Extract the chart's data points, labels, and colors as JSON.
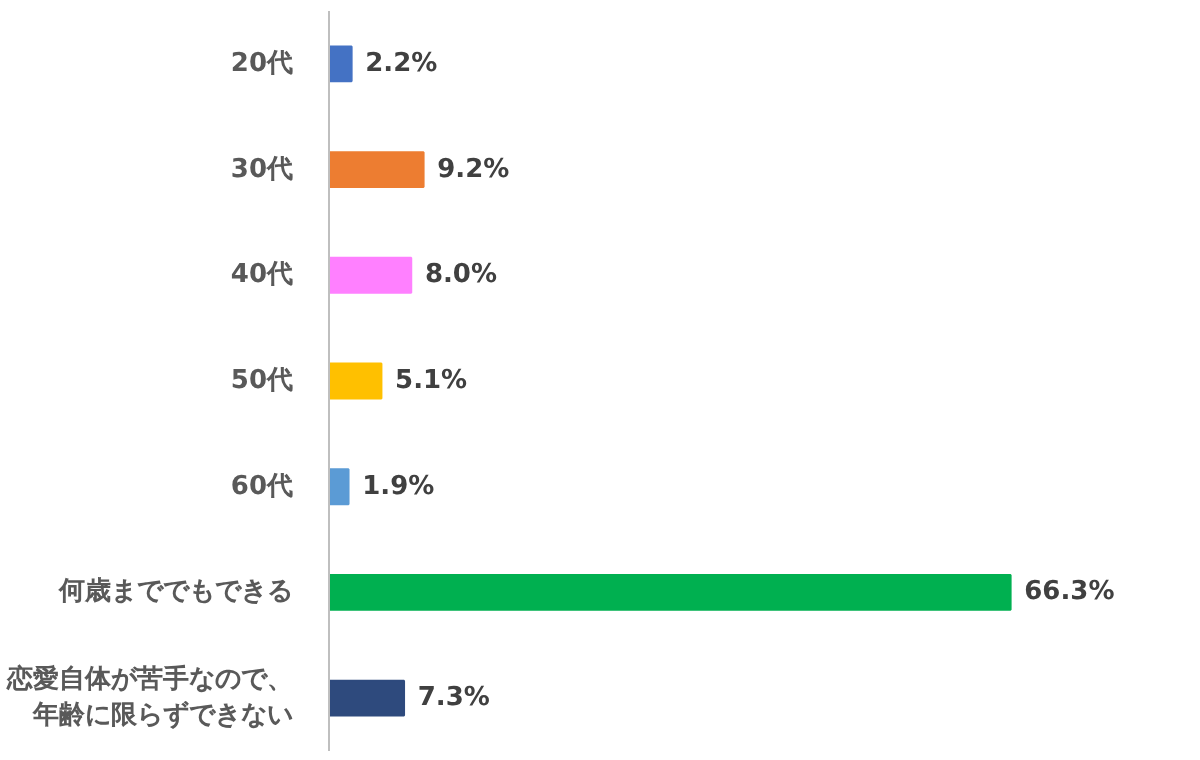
{
  "chart_data": {
    "type": "bar",
    "orientation": "horizontal",
    "categories": [
      "20代",
      "30代",
      "40代",
      "50代",
      "60代",
      "何歳まででもできる",
      "恋愛自体が苦手なので、年齢に限らずできない"
    ],
    "values": [
      2.2,
      9.2,
      8.0,
      5.1,
      1.9,
      66.3,
      7.3
    ],
    "value_labels": [
      "2.2%",
      "9.2%",
      "8.0%",
      "5.1%",
      "1.9%",
      "66.3%",
      "7.3%"
    ],
    "colors": [
      "#4472c4",
      "#ed7d31",
      "#ff80ff",
      "#ffc000",
      "#5b9bd5",
      "#00b050",
      "#2e4a7d"
    ],
    "grid": false
  }
}
